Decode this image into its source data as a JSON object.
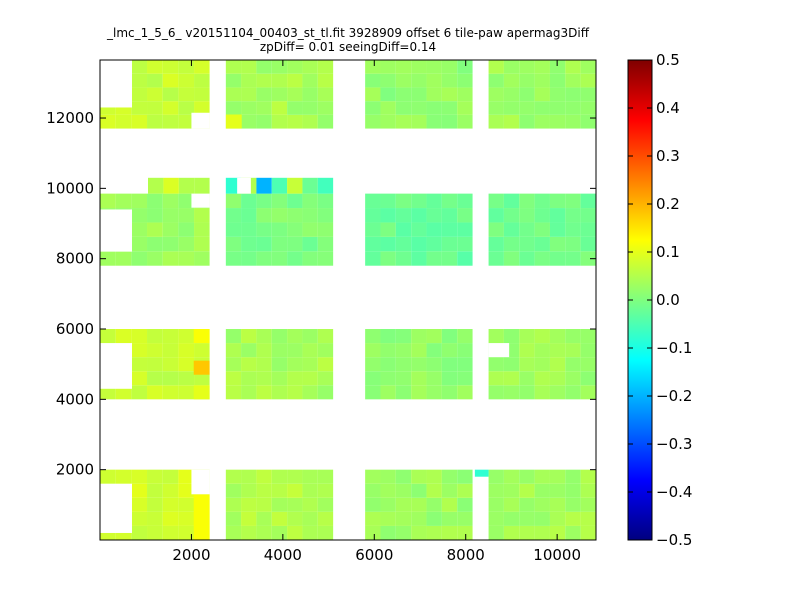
{
  "chart_data": {
    "type": "heatmap",
    "title_lines": [
      "_lmc_1_5_6_ v20151104_00403_st_tl.fit 3928909 offset 6 tile-paw apermag3Diff",
      "zpDiff= 0.01 seeingDiff=0.14"
    ],
    "xlabel": "",
    "ylabel": "",
    "xlim": [
      0,
      10850
    ],
    "ylim": [
      0,
      13650
    ],
    "xticks": [
      "2000",
      "4000",
      "6000",
      "8000",
      "10000"
    ],
    "xtick_values": [
      2000,
      4000,
      6000,
      8000,
      10000
    ],
    "yticks": [
      "2000",
      "4000",
      "6000",
      "8000",
      "10000",
      "12000"
    ],
    "ytick_values": [
      2000,
      4000,
      6000,
      8000,
      10000,
      12000
    ],
    "colormap": "jet",
    "colorbar": {
      "vmin": -0.5,
      "vmax": 0.5,
      "ticks": [
        "0.5",
        "0.4",
        "0.3",
        "0.2",
        "0.1",
        "0.0",
        "−0.1",
        "−0.2",
        "−0.3",
        "−0.4",
        "−0.5"
      ],
      "tick_values": [
        0.5,
        0.4,
        0.3,
        0.2,
        0.1,
        0.0,
        -0.1,
        -0.2,
        -0.3,
        -0.4,
        -0.5
      ]
    },
    "cell_size": [
      340,
      400
    ],
    "column_groups": [
      {
        "x": [
          0,
          2400
        ],
        "cols": 7
      },
      {
        "x": [
          2750,
          5100
        ],
        "cols": 7
      },
      {
        "x": [
          5800,
          8150
        ],
        "cols": 7
      },
      {
        "x": [
          8500,
          10850
        ],
        "cols": 7
      }
    ],
    "row_bands": [
      {
        "y": [
          0,
          2000
        ],
        "rows": 5
      },
      {
        "y": [
          4000,
          6000
        ],
        "rows": 5
      },
      {
        "y": [
          7800,
          9850
        ],
        "rows": 5
      },
      {
        "y": [
          11700,
          13650
        ],
        "rows": 5
      }
    ],
    "band_base_values": [
      0.05,
      0.04,
      0.0,
      0.04
    ],
    "group_offsets": [
      0.03,
      0.0,
      -0.02,
      -0.01
    ],
    "extra_row": {
      "y": [
        9850,
        10300
      ],
      "group": 0,
      "x": [
        1050,
        2400
      ],
      "value": 0.05
    },
    "extra_row_group2": {
      "y": [
        9850,
        10300
      ],
      "x": [
        2750,
        5100
      ],
      "values": [
        -0.08,
        0.05,
        -0.2,
        -0.05,
        0.07,
        -0.02,
        -0.06
      ]
    },
    "blank_regions": [
      {
        "x": [
          0,
          700
        ],
        "y": [
          200,
          1600
        ]
      },
      {
        "x": [
          0,
          700
        ],
        "y": [
          4300,
          5600
        ]
      },
      {
        "x": [
          0,
          700
        ],
        "y": [
          8200,
          9400
        ]
      },
      {
        "x": [
          0,
          700
        ],
        "y": [
          12300,
          13650
        ]
      },
      {
        "x": [
          2000,
          2400
        ],
        "y": [
          1300,
          2000
        ]
      },
      {
        "x": [
          2000,
          2400
        ],
        "y": [
          11700,
          12150
        ]
      },
      {
        "x": [
          2000,
          2400
        ],
        "y": [
          9450,
          9850
        ]
      },
      {
        "x": [
          3000,
          3300
        ],
        "y": [
          9850,
          10300
        ]
      },
      {
        "x": [
          8500,
          8950
        ],
        "y": [
          5200,
          5600
        ]
      },
      {
        "x": [
          2400,
          2750
        ],
        "y": [
          0,
          13650
        ]
      }
    ],
    "highlights": [
      {
        "x": [
          2050,
          2400
        ],
        "y": [
          4700,
          5100
        ],
        "value": 0.18
      },
      {
        "x": [
          2050,
          2400
        ],
        "y": [
          5600,
          6000
        ],
        "value": 0.12
      },
      {
        "x": [
          2050,
          2400
        ],
        "y": [
          4000,
          4400
        ],
        "value": 0.1
      },
      {
        "x": [
          2050,
          2400
        ],
        "y": [
          0,
          1300
        ],
        "value": 0.12
      },
      {
        "x": [
          8200,
          8500
        ],
        "y": [
          1800,
          2000
        ],
        "value": -0.08
      },
      {
        "x": [
          2750,
          3100
        ],
        "y": [
          11700,
          12100
        ],
        "value": 0.1
      }
    ]
  }
}
